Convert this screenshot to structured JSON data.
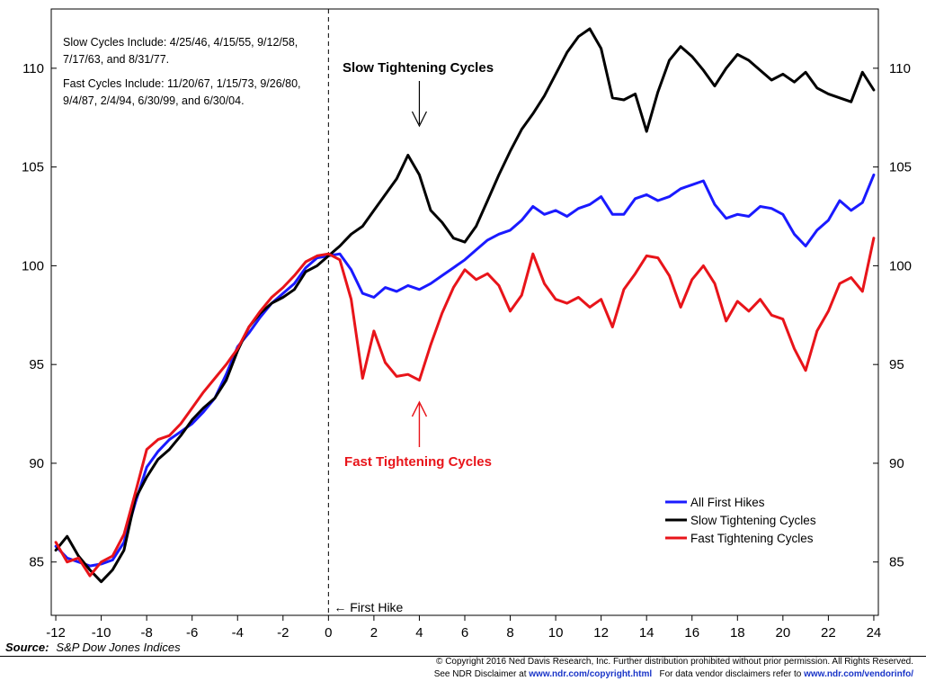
{
  "chart_data": {
    "type": "line",
    "xlim": [
      -12.2,
      24.2
    ],
    "ylim": [
      82.3,
      113
    ],
    "x_ticks": [
      -12,
      -10,
      -8,
      -6,
      -4,
      -2,
      0,
      2,
      4,
      6,
      8,
      10,
      12,
      14,
      16,
      18,
      20,
      22,
      24
    ],
    "x_tick_labels": [
      "-12",
      "-10",
      "-8",
      "-6",
      "-4",
      "-2",
      "0",
      "2",
      "4",
      "6",
      "8",
      "10",
      "12",
      "14",
      "16",
      "18",
      "20",
      "22",
      "24"
    ],
    "y_ticks": [
      85,
      90,
      95,
      100,
      105,
      110
    ],
    "y_tick_labels": [
      "85",
      "90",
      "95",
      "100",
      "105",
      "110"
    ],
    "grid": false,
    "legend_position": "lower-right",
    "vertical_marker": {
      "x": 0,
      "label": "First Hike"
    },
    "notes": [
      "Slow Cycles Include: 4/25/46, 4/15/55, 9/12/58,",
      "7/17/63, and 8/31/77.",
      "Fast Cycles Include: 11/20/67, 1/15/73, 9/26/80,",
      "9/4/87, 2/4/94, 6/30/99, and 6/30/04."
    ],
    "annotations": [
      {
        "text": "Slow Tightening Cycles",
        "color": "#000000",
        "x": 4,
        "y": 105.9
      },
      {
        "text": "Fast Tightening Cycles",
        "color": "#e8141a",
        "x": 4,
        "y": 94.2
      }
    ],
    "series": [
      {
        "name": "All First Hikes",
        "color": "#1a1aff",
        "x": [
          -12,
          -11.5,
          -11,
          -10.5,
          -10,
          -9.5,
          -9,
          -8.5,
          -8,
          -7.5,
          -7,
          -6.5,
          -6,
          -5.5,
          -5,
          -4.5,
          -4,
          -3.5,
          -3,
          -2.5,
          -2,
          -1.5,
          -1,
          -0.5,
          0,
          0.5,
          1,
          1.5,
          2,
          2.5,
          3,
          3.5,
          4,
          4.5,
          5,
          5.5,
          6,
          6.5,
          7,
          7.5,
          8,
          8.5,
          9,
          9.5,
          10,
          10.5,
          11,
          11.5,
          12,
          12.5,
          13,
          13.5,
          14,
          14.5,
          15,
          15.5,
          16,
          16.5,
          17,
          17.5,
          18,
          18.5,
          19,
          19.5,
          20,
          20.5,
          21,
          21.5,
          22,
          22.5,
          23,
          23.5,
          24
        ],
        "values": [
          85.8,
          85.2,
          85.0,
          84.8,
          84.9,
          85.1,
          86.0,
          88.0,
          89.8,
          90.6,
          91.2,
          91.6,
          92.0,
          92.6,
          93.3,
          94.5,
          95.9,
          96.6,
          97.4,
          98.1,
          98.6,
          99.1,
          99.9,
          100.4,
          100.5,
          100.6,
          99.8,
          98.6,
          98.4,
          98.9,
          98.7,
          99.0,
          98.8,
          99.1,
          99.5,
          99.9,
          100.3,
          100.8,
          101.3,
          101.6,
          101.8,
          102.3,
          103.0,
          102.6,
          102.8,
          102.5,
          102.9,
          103.1,
          103.5,
          102.6,
          102.6,
          103.4,
          103.6,
          103.3,
          103.5,
          103.9,
          104.1,
          104.3,
          103.1,
          102.4,
          102.6,
          102.5,
          103.0,
          102.9,
          102.6,
          101.6,
          101.0,
          101.8,
          102.3,
          103.3,
          102.8,
          103.2,
          104.6
        ]
      },
      {
        "name": "Slow Tightening Cycles",
        "color": "#000000",
        "x": [
          -12,
          -11.5,
          -11,
          -10.5,
          -10,
          -9.5,
          -9,
          -8.5,
          -8,
          -7.5,
          -7,
          -6.5,
          -6,
          -5.5,
          -5,
          -4.5,
          -4,
          -3.5,
          -3,
          -2.5,
          -2,
          -1.5,
          -1,
          -0.5,
          0,
          0.5,
          1,
          1.5,
          2,
          2.5,
          3,
          3.5,
          4,
          4.5,
          5,
          5.5,
          6,
          6.5,
          7,
          7.5,
          8,
          8.5,
          9,
          9.5,
          10,
          10.5,
          11,
          11.5,
          12,
          12.5,
          13,
          13.5,
          14,
          14.5,
          15,
          15.5,
          16,
          16.5,
          17,
          17.5,
          18,
          18.5,
          19,
          19.5,
          20,
          20.5,
          21,
          21.5,
          22,
          22.5,
          23,
          23.5,
          24
        ],
        "values": [
          85.6,
          86.3,
          85.3,
          84.6,
          84.0,
          84.6,
          85.6,
          88.2,
          89.3,
          90.2,
          90.7,
          91.4,
          92.2,
          92.8,
          93.3,
          94.2,
          95.7,
          96.9,
          97.6,
          98.1,
          98.4,
          98.8,
          99.7,
          100.0,
          100.5,
          101.0,
          101.6,
          102.0,
          102.8,
          103.6,
          104.4,
          105.6,
          104.6,
          102.8,
          102.2,
          101.4,
          101.2,
          102.0,
          103.3,
          104.6,
          105.8,
          106.9,
          107.7,
          108.6,
          109.7,
          110.8,
          111.6,
          112.0,
          111.0,
          108.5,
          108.4,
          108.7,
          106.8,
          108.8,
          110.4,
          111.1,
          110.6,
          109.9,
          109.1,
          110.0,
          110.7,
          110.4,
          109.9,
          109.4,
          109.7,
          109.3,
          109.8,
          109.0,
          108.7,
          108.5,
          108.3,
          109.8,
          108.9
        ]
      },
      {
        "name": "Fast Tightening Cycles",
        "color": "#e8141a",
        "x": [
          -12,
          -11.5,
          -11,
          -10.5,
          -10,
          -9.5,
          -9,
          -8.5,
          -8,
          -7.5,
          -7,
          -6.5,
          -6,
          -5.5,
          -5,
          -4.5,
          -4,
          -3.5,
          -3,
          -2.5,
          -2,
          -1.5,
          -1,
          -0.5,
          0,
          0.5,
          1,
          1.5,
          2,
          2.5,
          3,
          3.5,
          4,
          4.5,
          5,
          5.5,
          6,
          6.5,
          7,
          7.5,
          8,
          8.5,
          9,
          9.5,
          10,
          10.5,
          11,
          11.5,
          12,
          12.5,
          13,
          13.5,
          14,
          14.5,
          15,
          15.5,
          16,
          16.5,
          17,
          17.5,
          18,
          18.5,
          19,
          19.5,
          20,
          20.5,
          21,
          21.5,
          22,
          22.5,
          23,
          23.5,
          24
        ],
        "values": [
          86.0,
          85.0,
          85.2,
          84.3,
          85.0,
          85.3,
          86.4,
          88.5,
          90.7,
          91.2,
          91.4,
          92.0,
          92.8,
          93.6,
          94.3,
          95.0,
          95.8,
          96.9,
          97.7,
          98.4,
          98.9,
          99.5,
          100.2,
          100.5,
          100.6,
          100.3,
          98.3,
          94.3,
          96.7,
          95.1,
          94.4,
          94.5,
          94.2,
          96.0,
          97.6,
          98.9,
          99.8,
          99.3,
          99.6,
          99.0,
          97.7,
          98.5,
          100.6,
          99.1,
          98.3,
          98.1,
          98.4,
          97.9,
          98.3,
          96.9,
          98.8,
          99.6,
          100.5,
          100.4,
          99.5,
          97.9,
          99.3,
          100.0,
          99.1,
          97.2,
          98.2,
          97.7,
          98.3,
          97.5,
          97.3,
          95.8,
          94.7,
          96.7,
          97.7,
          99.1,
          99.4,
          98.7,
          101.4
        ]
      }
    ]
  },
  "source": {
    "label": "Source:",
    "text": "S&P Dow Jones Indices"
  },
  "footer": {
    "line1": "© Copyright 2016 Ned Davis Research, Inc. Further distribution prohibited without prior permission. All Rights Reserved.",
    "line2_pre": "See NDR Disclaimer at",
    "line2_link1": "www.ndr.com/copyright.html",
    "line2_mid": "For data vendor disclaimers refer to",
    "line2_link2": "www.ndr.com/vendorinfo/"
  }
}
